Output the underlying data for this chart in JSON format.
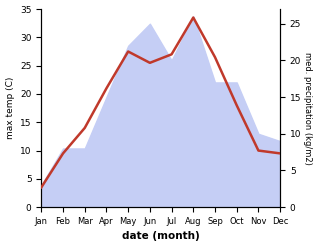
{
  "months": [
    "Jan",
    "Feb",
    "Mar",
    "Apr",
    "May",
    "Jun",
    "Jul",
    "Aug",
    "Sep",
    "Oct",
    "Nov",
    "Dec"
  ],
  "temp": [
    3.5,
    9.5,
    14.0,
    21.0,
    27.5,
    25.5,
    27.0,
    33.5,
    26.5,
    18.0,
    10.0,
    9.5
  ],
  "precip": [
    3.0,
    8.0,
    8.0,
    15.0,
    22.0,
    25.0,
    20.0,
    26.0,
    17.0,
    17.0,
    10.0,
    9.0
  ],
  "temp_color": "#c0392b",
  "precip_fill_color": "#c5cef5",
  "temp_ylim": [
    0,
    35
  ],
  "precip_ylim": [
    0,
    27
  ],
  "temp_yticks": [
    0,
    5,
    10,
    15,
    20,
    25,
    30,
    35
  ],
  "precip_yticks": [
    0,
    5,
    10,
    15,
    20,
    25
  ],
  "xlabel": "date (month)",
  "ylabel_left": "max temp (C)",
  "ylabel_right": "med. precipitation (kg/m2)"
}
